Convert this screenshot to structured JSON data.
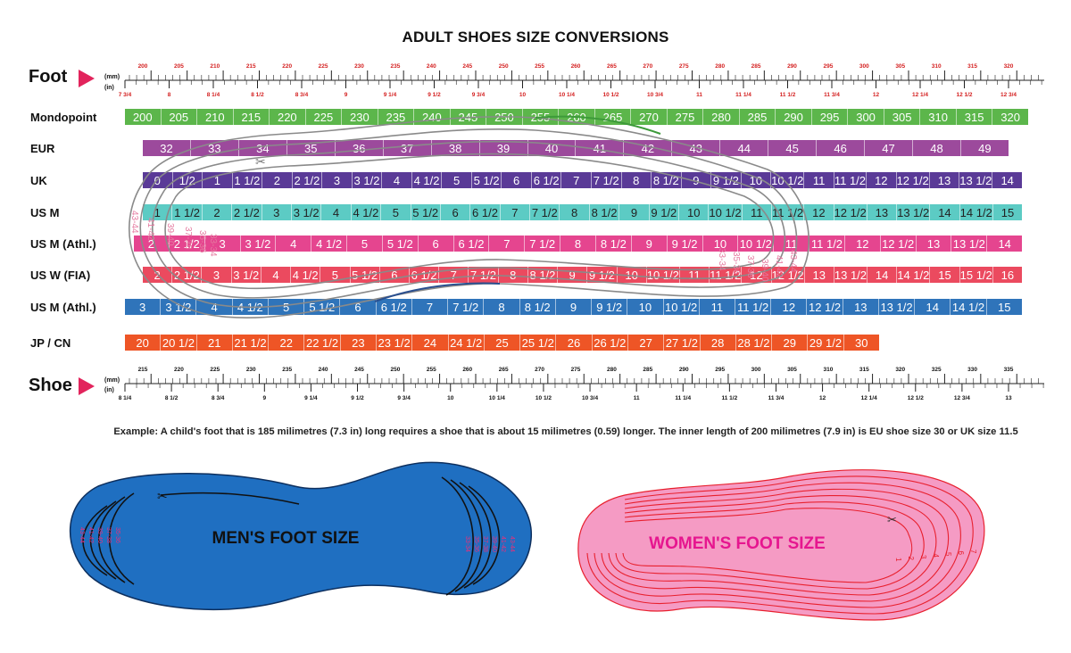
{
  "title": "ADULT SHOES SIZE CONVERSIONS",
  "foot_label": "Foot",
  "shoe_label": "Shoe",
  "unit_mm": "(mm)",
  "unit_in": "(in)",
  "colors": {
    "accent": "#e2245c",
    "mondopoint": "#5cb64b",
    "eur": "#9c4a9c",
    "uk": "#5a3a97",
    "us_m": "#5ccbc4",
    "us_m_athl_pink": "#e5458f",
    "us_w_fia": "#eb4a5f",
    "us_m_athl_blue": "#2f74ba",
    "jp_cn": "#ee5526",
    "men_foot": "#1f6fc1",
    "women_foot": "#f59bc4",
    "women_outline": "#e8202e"
  },
  "foot_ruler": {
    "mm_labels": [
      "200",
      "205",
      "210",
      "215",
      "220",
      "225",
      "230",
      "235",
      "240",
      "245",
      "250",
      "255",
      "260",
      "265",
      "270",
      "275",
      "280",
      "285",
      "290",
      "295",
      "300",
      "305",
      "310",
      "315",
      "320"
    ],
    "in_labels": [
      "7 3/4",
      "8",
      "8 1/4",
      "8 1/2",
      "8 3/4",
      "9",
      "9 1/4",
      "9 1/2",
      "9 3/4",
      "10",
      "10 1/4",
      "10 1/2",
      "10 3/4",
      "11",
      "11 1/4",
      "11 1/2",
      "11 3/4",
      "12",
      "12 1/4",
      "12 1/2",
      "12 3/4"
    ]
  },
  "shoe_ruler": {
    "mm_labels": [
      "215",
      "220",
      "225",
      "230",
      "235",
      "240",
      "245",
      "250",
      "255",
      "260",
      "265",
      "270",
      "275",
      "280",
      "285",
      "290",
      "295",
      "300",
      "305",
      "310",
      "315",
      "320",
      "325",
      "330",
      "335"
    ],
    "in_labels": [
      "8 1/4",
      "8 1/2",
      "8 3/4",
      "9",
      "9 1/4",
      "9 1/2",
      "9 3/4",
      "10",
      "10 1/4",
      "10 1/2",
      "10 3/4",
      "11",
      "11 1/4",
      "11 1/2",
      "11 3/4",
      "12",
      "12 1/4",
      "12 1/2",
      "12 3/4",
      "13"
    ]
  },
  "rows": [
    {
      "name": "Mondopoint",
      "cells": [
        "200",
        "205",
        "210",
        "215",
        "220",
        "225",
        "230",
        "235",
        "240",
        "245",
        "250",
        "255",
        "260",
        "265",
        "270",
        "275",
        "280",
        "285",
        "290",
        "295",
        "300",
        "305",
        "310",
        "315",
        "320"
      ]
    },
    {
      "name": "EUR",
      "cells": [
        "32",
        "33",
        "34",
        "35",
        "36",
        "37",
        "38",
        "39",
        "40",
        "41",
        "42",
        "43",
        "44",
        "45",
        "46",
        "47",
        "48",
        "49"
      ]
    },
    {
      "name": "UK",
      "cells": [
        "0",
        "1/2",
        "1",
        "1 1/2",
        "2",
        "2 1/2",
        "3",
        "3 1/2",
        "4",
        "4 1/2",
        "5",
        "5 1/2",
        "6",
        "6 1/2",
        "7",
        "7 1/2",
        "8",
        "8 1/2",
        "9",
        "9 1/2",
        "10",
        "10 1/2",
        "11",
        "11 1/2",
        "12",
        "12 1/2",
        "13",
        "13 1/2",
        "14"
      ]
    },
    {
      "name": "US M",
      "cells": [
        "1",
        "1 1/2",
        "2",
        "2 1/2",
        "3",
        "3 1/2",
        "4",
        "4 1/2",
        "5",
        "5 1/2",
        "6",
        "6 1/2",
        "7",
        "7 1/2",
        "8",
        "8 1/2",
        "9",
        "9 1/2",
        "10",
        "10 1/2",
        "11",
        "11 1/2",
        "12",
        "12 1/2",
        "13",
        "13 1/2",
        "14",
        "14 1/2",
        "15"
      ]
    },
    {
      "name": "US M (Athl.)",
      "cells": [
        "2",
        "2 1/2",
        "3",
        "3 1/2",
        "4",
        "4 1/2",
        "5",
        "5 1/2",
        "6",
        "6 1/2",
        "7",
        "7 1/2",
        "8",
        "8 1/2",
        "9",
        "9 1/2",
        "10",
        "10 1/2",
        "11",
        "11 1/2",
        "12",
        "12 1/2",
        "13",
        "13 1/2",
        "14"
      ]
    },
    {
      "name": "US W (FIA)",
      "cells": [
        "2",
        "2 1/2",
        "3",
        "3 1/2",
        "4",
        "4 1/2",
        "5",
        "5 1/2",
        "6",
        "6 1/2",
        "7",
        "7 1/2",
        "8",
        "8 1/2",
        "9",
        "9 1/2",
        "10",
        "10 1/2",
        "11",
        "11 1/2",
        "12",
        "12 1/2",
        "13",
        "13 1/2",
        "14",
        "14 1/2",
        "15",
        "15 1/2",
        "16"
      ]
    },
    {
      "name": "US M (Athl.)",
      "cells": [
        "3",
        "3 1/2",
        "4",
        "4 1/2",
        "5",
        "5 1/2",
        "6",
        "6 1/2",
        "7",
        "7 1/2",
        "8",
        "8 1/2",
        "9",
        "9 1/2",
        "10",
        "10 1/2",
        "11",
        "11 1/2",
        "12",
        "12 1/2",
        "13",
        "13 1/2",
        "14",
        "14 1/2",
        "15"
      ]
    },
    {
      "name": "JP / CN",
      "cells": [
        "20",
        "20 1/2",
        "21",
        "21 1/2",
        "22",
        "22 1/2",
        "23",
        "23 1/2",
        "24",
        "24 1/2",
        "25",
        "25 1/2",
        "26",
        "26 1/2",
        "27",
        "27 1/2",
        "28",
        "28 1/2",
        "29",
        "29 1/2",
        "30"
      ]
    }
  ],
  "overlay_sizes": [
    "43-44",
    "41-42",
    "39-40",
    "37-38",
    "35-36",
    "33-34",
    "33-34",
    "35-36",
    "37-38",
    "39-40",
    "41-42",
    "43-44"
  ],
  "example_text": "Example: A child's foot that is 185 milimetres (7.3 in) long requires a shoe that is about 15 milimetres (0.59) longer. The inner length of 200 milimetres (7.9 in) is EU shoe size 30 or UK size 11.5",
  "men_label": "MEN'S FOOT SIZE",
  "women_label": "WOMEN'S FOOT SIZE",
  "men_heel_sizes": [
    "43-44",
    "41-42",
    "39-40",
    "37-38",
    "35-36"
  ],
  "men_toe_sizes": [
    "33-34",
    "35-36",
    "37-38",
    "39-40",
    "41-42",
    "43-44"
  ],
  "women_sizes": [
    "1",
    "2",
    "3",
    "4",
    "5",
    "6",
    "7"
  ]
}
